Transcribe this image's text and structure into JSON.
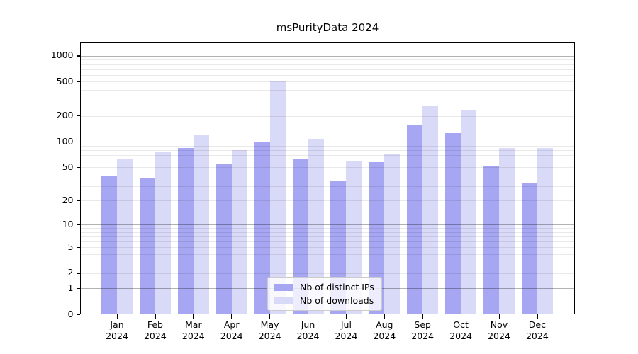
{
  "chart_data": {
    "type": "bar",
    "title": "msPurityData 2024",
    "categories": [
      "Jan",
      "Feb",
      "Mar",
      "Apr",
      "May",
      "Jun",
      "Jul",
      "Aug",
      "Sep",
      "Oct",
      "Nov",
      "Dec"
    ],
    "category_line2": "2024",
    "series": [
      {
        "name": "Nb of distinct IPs",
        "color": "#a6a6f2",
        "values": [
          40,
          37,
          85,
          55,
          100,
          62,
          35,
          57,
          157,
          126,
          51,
          32
        ]
      },
      {
        "name": "Nb of downloads",
        "color": "#d9d9f8",
        "values": [
          62,
          75,
          121,
          80,
          500,
          107,
          60,
          72,
          260,
          235,
          84,
          84
        ]
      }
    ],
    "y_axis": {
      "scale": "log10(1+y)",
      "ticks": [
        0,
        1,
        2,
        5,
        10,
        20,
        50,
        100,
        200,
        500,
        1000
      ],
      "top_value": 1430
    },
    "grid": {
      "major_at": [
        1,
        10,
        100,
        1000
      ],
      "major_color": "rgba(0,0,0,0.30)",
      "minor_color": "rgba(0,0,0,0.085)"
    },
    "legend_position": "lower center"
  }
}
